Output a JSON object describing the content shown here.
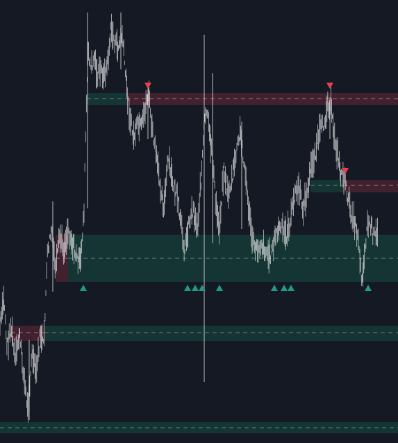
{
  "chart_data": {
    "type": "line",
    "style": "price-bars",
    "colors": {
      "background": "#141923",
      "bars": "#f2f2f2",
      "support_zone": "#143735",
      "resistance_zone": "#4a2331",
      "support_line": "#6e8f8c",
      "resistance_line": "#a08890",
      "buy_marker": "#1f9a87",
      "sell_marker": "#e8414d"
    },
    "grid": false,
    "axes_visible": false,
    "ylim": [
      0,
      638
    ],
    "zones": [
      {
        "kind": "resistance",
        "y_top": 134,
        "y_bottom": 151,
        "x_start": 182,
        "x_end": 573,
        "level": 142
      },
      {
        "kind": "support",
        "y_top": 134,
        "y_bottom": 151,
        "x_start": 125,
        "x_end": 182,
        "level": 142
      },
      {
        "kind": "resistance",
        "y_top": 259,
        "y_bottom": 277,
        "x_start": 494,
        "x_end": 573,
        "level": 267
      },
      {
        "kind": "support",
        "y_top": 259,
        "y_bottom": 277,
        "x_start": 447,
        "x_end": 494,
        "level": 267
      },
      {
        "kind": "support",
        "y_top": 338,
        "y_bottom": 406,
        "x_start": 98,
        "x_end": 573,
        "level": 372
      },
      {
        "kind": "resistance",
        "y_top": 338,
        "y_bottom": 406,
        "x_start": 80,
        "x_end": 98,
        "level": 372
      },
      {
        "kind": "support",
        "y_top": 469,
        "y_bottom": 491,
        "x_start": 64,
        "x_end": 573,
        "level": 479
      },
      {
        "kind": "resistance",
        "y_top": 469,
        "y_bottom": 491,
        "x_start": 16,
        "x_end": 64,
        "level": 479
      },
      {
        "kind": "support",
        "y_top": 608,
        "y_bottom": 624,
        "x_start": 0,
        "x_end": 573,
        "level": 616
      }
    ],
    "price_path": [
      [
        0,
        470
      ],
      [
        6,
        430
      ],
      [
        10,
        500
      ],
      [
        16,
        470
      ],
      [
        22,
        520
      ],
      [
        28,
        480
      ],
      [
        34,
        540
      ],
      [
        40,
        590
      ],
      [
        46,
        510
      ],
      [
        52,
        540
      ],
      [
        58,
        480
      ],
      [
        63,
        500
      ],
      [
        68,
        370
      ],
      [
        74,
        330
      ],
      [
        80,
        390
      ],
      [
        86,
        340
      ],
      [
        92,
        360
      ],
      [
        98,
        330
      ],
      [
        104,
        350
      ],
      [
        110,
        370
      ],
      [
        116,
        380
      ],
      [
        121,
        300
      ],
      [
        124,
        160
      ],
      [
        127,
        70
      ],
      [
        131,
        100
      ],
      [
        136,
        80
      ],
      [
        140,
        110
      ],
      [
        145,
        100
      ],
      [
        150,
        110
      ],
      [
        155,
        90
      ],
      [
        160,
        40
      ],
      [
        165,
        60
      ],
      [
        170,
        70
      ],
      [
        176,
        50
      ],
      [
        180,
        100
      ],
      [
        186,
        160
      ],
      [
        192,
        200
      ],
      [
        198,
        180
      ],
      [
        204,
        185
      ],
      [
        210,
        150
      ],
      [
        214,
        130
      ],
      [
        218,
        180
      ],
      [
        224,
        220
      ],
      [
        230,
        260
      ],
      [
        236,
        300
      ],
      [
        242,
        230
      ],
      [
        248,
        260
      ],
      [
        254,
        280
      ],
      [
        260,
        320
      ],
      [
        266,
        360
      ],
      [
        272,
        320
      ],
      [
        278,
        300
      ],
      [
        284,
        330
      ],
      [
        290,
        250
      ],
      [
        294,
        180
      ],
      [
        298,
        160
      ],
      [
        302,
        200
      ],
      [
        306,
        220
      ],
      [
        310,
        290
      ],
      [
        316,
        330
      ],
      [
        322,
        240
      ],
      [
        328,
        280
      ],
      [
        334,
        260
      ],
      [
        340,
        220
      ],
      [
        346,
        190
      ],
      [
        352,
        240
      ],
      [
        358,
        300
      ],
      [
        364,
        350
      ],
      [
        370,
        360
      ],
      [
        376,
        350
      ],
      [
        382,
        360
      ],
      [
        388,
        370
      ],
      [
        394,
        350
      ],
      [
        400,
        330
      ],
      [
        406,
        330
      ],
      [
        412,
        340
      ],
      [
        418,
        320
      ],
      [
        424,
        280
      ],
      [
        430,
        270
      ],
      [
        436,
        300
      ],
      [
        442,
        280
      ],
      [
        448,
        240
      ],
      [
        454,
        220
      ],
      [
        460,
        190
      ],
      [
        466,
        180
      ],
      [
        472,
        150
      ],
      [
        476,
        150
      ],
      [
        480,
        190
      ],
      [
        486,
        220
      ],
      [
        490,
        250
      ],
      [
        494,
        250
      ],
      [
        498,
        270
      ],
      [
        504,
        300
      ],
      [
        510,
        320
      ],
      [
        516,
        340
      ],
      [
        520,
        400
      ],
      [
        524,
        380
      ],
      [
        528,
        330
      ],
      [
        532,
        320
      ],
      [
        538,
        340
      ],
      [
        544,
        340
      ]
    ],
    "spikes": [
      [
        126,
        18,
        300
      ],
      [
        174,
        18,
        100
      ],
      [
        294,
        50,
        550
      ],
      [
        306,
        105,
        350
      ],
      [
        42,
        490,
        605
      ],
      [
        76,
        290,
        420
      ],
      [
        213,
        120,
        200
      ],
      [
        348,
        175,
        330
      ],
      [
        475,
        140,
        200
      ]
    ],
    "sell_signals": [
      {
        "x": 213,
        "y": 124
      },
      {
        "x": 475,
        "y": 124
      },
      {
        "x": 497,
        "y": 247
      }
    ],
    "buy_signals": [
      {
        "x": 120,
        "y": 415
      },
      {
        "x": 270,
        "y": 415
      },
      {
        "x": 281,
        "y": 415
      },
      {
        "x": 291,
        "y": 415
      },
      {
        "x": 316,
        "y": 415
      },
      {
        "x": 395,
        "y": 415
      },
      {
        "x": 409,
        "y": 415
      },
      {
        "x": 419,
        "y": 415
      },
      {
        "x": 530,
        "y": 415
      }
    ]
  }
}
